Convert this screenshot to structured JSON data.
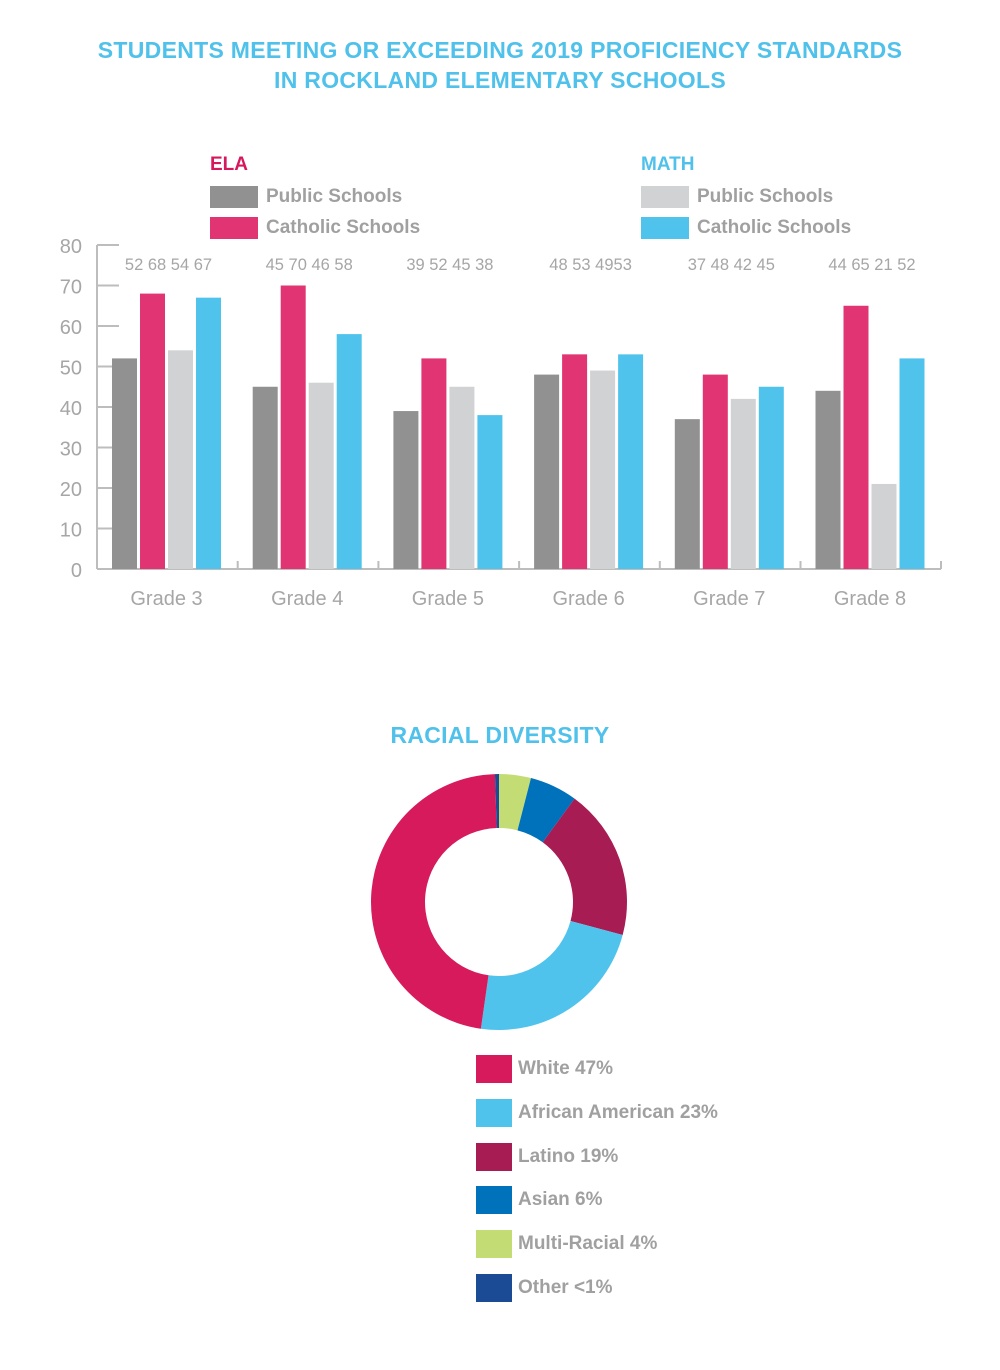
{
  "main_title_lines": [
    "STUDENTS MEETING OR EXCEEDING 2019 PROFICIENCY STANDARDS",
    "IN ROCKLAND ELEMENTARY SCHOOLS"
  ],
  "colors": {
    "title": "#4fc1ea",
    "ela_head": "#d6195c",
    "math_head": "#4fc1ea",
    "ela_public": "#919191",
    "ela_catholic": "#e03473",
    "math_public": "#d1d2d4",
    "math_catholic": "#50c3ec",
    "axis": "#bdbdbd",
    "label_text": "#a6a6a6"
  },
  "legend": {
    "ela": {
      "head": "ELA",
      "items": [
        {
          "label": "Public Schools",
          "key": "ela_public"
        },
        {
          "label": "Catholic Schools",
          "key": "ela_catholic"
        }
      ]
    },
    "math": {
      "head": "MATH",
      "items": [
        {
          "label": "Public Schools",
          "key": "math_public"
        },
        {
          "label": "Catholic Schools",
          "key": "math_catholic"
        }
      ]
    }
  },
  "chart_data": [
    {
      "type": "bar",
      "title": "STUDENTS MEETING OR EXCEEDING 2019 PROFICIENCY STANDARDS IN ROCKLAND ELEMENTARY SCHOOLS",
      "xlabel": "",
      "ylabel": "",
      "ylim": [
        0,
        80
      ],
      "yticks": [
        0,
        10,
        20,
        30,
        40,
        50,
        60,
        70,
        80
      ],
      "grid": false,
      "legend_position": "top",
      "categories": [
        "Grade 3",
        "Grade 4",
        "Grade 5",
        "Grade 6",
        "Grade 7",
        "Grade 8"
      ],
      "series": [
        {
          "name": "ELA Public Schools",
          "color": "#919191",
          "values": [
            52,
            45,
            39,
            48,
            37,
            44
          ]
        },
        {
          "name": "ELA Catholic Schools",
          "color": "#e03473",
          "values": [
            68,
            70,
            52,
            53,
            48,
            65
          ]
        },
        {
          "name": "MATH Public Schools",
          "color": "#d1d2d4",
          "values": [
            54,
            46,
            45,
            49,
            42,
            21
          ]
        },
        {
          "name": "MATH Catholic Schools",
          "color": "#50c3ec",
          "values": [
            67,
            58,
            38,
            53,
            45,
            52
          ]
        }
      ],
      "data_labels": [
        "52 68 54 67",
        "45 70 46 58",
        "39 52 45 38",
        "48 53 4953",
        "37 48 42 45",
        "44 65 21 52"
      ]
    },
    {
      "type": "pie",
      "title": "RACIAL DIVERSITY",
      "donut": true,
      "legend_position": "bottom",
      "slices": [
        {
          "label": "Multi-Racial",
          "value": 4,
          "color": "#c3dc74"
        },
        {
          "label": "Asian",
          "value": 6,
          "color": "#0072bc"
        },
        {
          "label": "Latino",
          "value": 19,
          "color": "#a81c54"
        },
        {
          "label": "African American",
          "value": 23,
          "color": "#50c3ec"
        },
        {
          "label": "White",
          "value": 47,
          "color": "#d61a5c"
        },
        {
          "label": "Other",
          "value": 0.5,
          "color": "#1b4b94"
        }
      ],
      "legend_items": [
        {
          "label": "White 47%",
          "color": "#d61a5c"
        },
        {
          "label": "African American 23%",
          "color": "#50c3ec"
        },
        {
          "label": "Latino 19%",
          "color": "#a81c54"
        },
        {
          "label": "Asian 6%",
          "color": "#0072bc"
        },
        {
          "label": "Multi-Racial 4%",
          "color": "#c3dc74"
        },
        {
          "label": "Other <1%",
          "color": "#1b4b94"
        }
      ]
    }
  ]
}
